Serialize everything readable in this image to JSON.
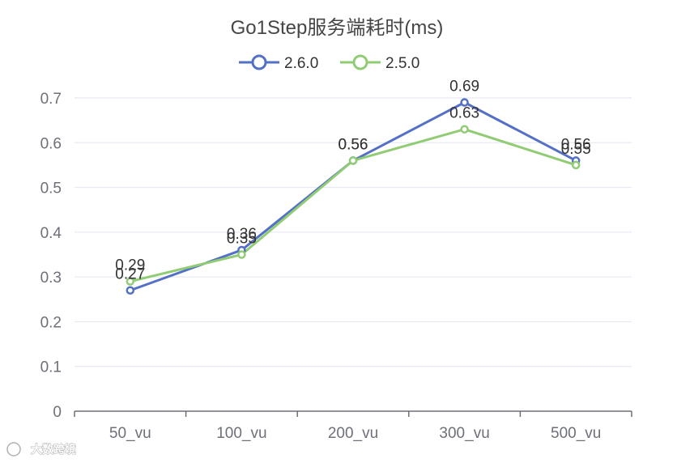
{
  "chart_data": {
    "type": "line",
    "title": "Go1Step服务端耗时(ms)",
    "categories": [
      "50_vu",
      "100_vu",
      "200_vu",
      "300_vu",
      "500_vu"
    ],
    "series": [
      {
        "name": "2.6.0",
        "color": "#5470c6",
        "values": [
          0.27,
          0.36,
          0.56,
          0.69,
          0.56
        ]
      },
      {
        "name": "2.5.0",
        "color": "#91cc75",
        "values": [
          0.29,
          0.35,
          0.56,
          0.63,
          0.55
        ]
      }
    ],
    "ylim": [
      0,
      0.7
    ],
    "yticks": [
      "0",
      "0.1",
      "0.2",
      "0.3",
      "0.4",
      "0.5",
      "0.6",
      "0.7"
    ],
    "xlabel": "",
    "ylabel": "",
    "grid": true,
    "legend_position": "top-center"
  },
  "watermark": {
    "text": "大数跨境"
  },
  "colors": {
    "grid": "#e0e6f1",
    "axis": "#6e7079"
  }
}
